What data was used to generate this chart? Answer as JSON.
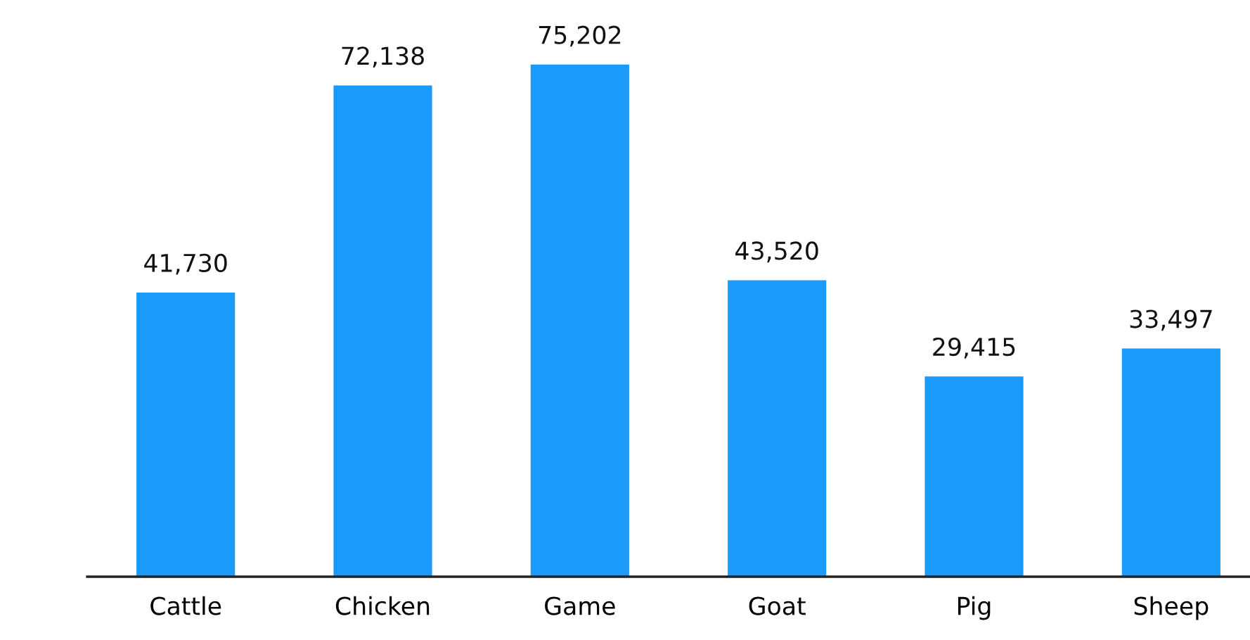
{
  "chart_data": {
    "type": "bar",
    "categories": [
      "Cattle",
      "Chicken",
      "Game",
      "Goat",
      "Pig",
      "Sheep"
    ],
    "values": [
      41730,
      72138,
      75202,
      43520,
      29415,
      33497
    ],
    "color": "#1a9bfb",
    "value_labels": [
      "41,730",
      "72,138",
      "75,202",
      "43,520",
      "29,415",
      "33,497"
    ],
    "tick_labels": "x",
    "grid": false,
    "legend": false
  }
}
